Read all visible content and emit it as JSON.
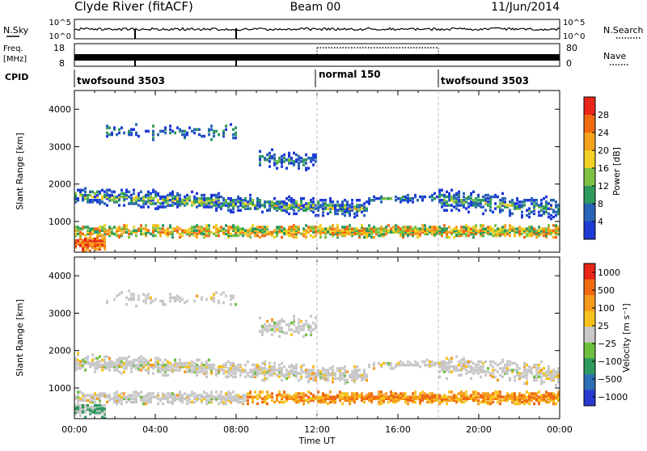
{
  "header": {
    "station": "Clyde River (fitACF)",
    "beam": "Beam 00",
    "date": "11/Jun/2014"
  },
  "strips": {
    "nsky_label": "N.Sky",
    "nsky_ticks": [
      "10^5",
      "10^0"
    ],
    "nsearch_label": "N.Search",
    "nsearch_ticks": [
      "10^5",
      "10^0"
    ],
    "freq_label": "Freq.",
    "freq_unit": "[MHz]",
    "freq_ticks": [
      "18",
      "8"
    ],
    "nave_label": "Nave",
    "nave_ticks": [
      "80",
      "0"
    ],
    "cpid_label": "CPID",
    "cpid_segments": [
      {
        "label": "twofsound 3503",
        "start_h": 0,
        "end_h": 12
      },
      {
        "label": "normal 150",
        "start_h": 12,
        "end_h": 18
      },
      {
        "label": "twofsound 3503",
        "start_h": 18,
        "end_h": 24
      }
    ]
  },
  "chart_data": [
    {
      "type": "heatmap",
      "quantity": "Power",
      "ylabel": "Slant Range [km]",
      "ylim": [
        180,
        4500
      ],
      "yticks": [
        "1000",
        "2000",
        "3000",
        "4000"
      ],
      "xlim": [
        0,
        24
      ],
      "colorbar_label": "Power [dB]",
      "colorbar_ticks": [
        "4",
        "8",
        "12",
        "16",
        "20",
        "24",
        "28"
      ],
      "colors": [
        "#1f3bd6",
        "#2a64b8",
        "#2f9a5e",
        "#7dc243",
        "#f0d023",
        "#f5a21c",
        "#f06a12",
        "#e8261a"
      ],
      "grid": false
    },
    {
      "type": "heatmap",
      "quantity": "Velocity",
      "ylabel": "Slant Range [km]",
      "ylim": [
        180,
        4500
      ],
      "yticks": [
        "1000",
        "2000",
        "3000",
        "4000"
      ],
      "xlim": [
        0,
        24
      ],
      "colorbar_label": "Velocity [m s⁻¹]",
      "colorbar_ticks": [
        "1000",
        "500",
        "100",
        "25",
        "−25",
        "−100",
        "−500",
        "−1000"
      ],
      "colors": [
        "#2a3ad0",
        "#2f6fb6",
        "#2f9a5e",
        "#6cc03e",
        "#c8c8c8",
        "#f5c21c",
        "#f59a1c",
        "#f06a12",
        "#e8261a"
      ],
      "grid": false
    }
  ],
  "xaxis": {
    "label": "Time UT",
    "ticks": [
      "00:00",
      "04:00",
      "08:00",
      "12:00",
      "16:00",
      "20:00",
      "00:00"
    ]
  },
  "colors": {
    "background": "#ffffff",
    "axis": "#000000",
    "dashed_markers": "#bbbbbb"
  }
}
